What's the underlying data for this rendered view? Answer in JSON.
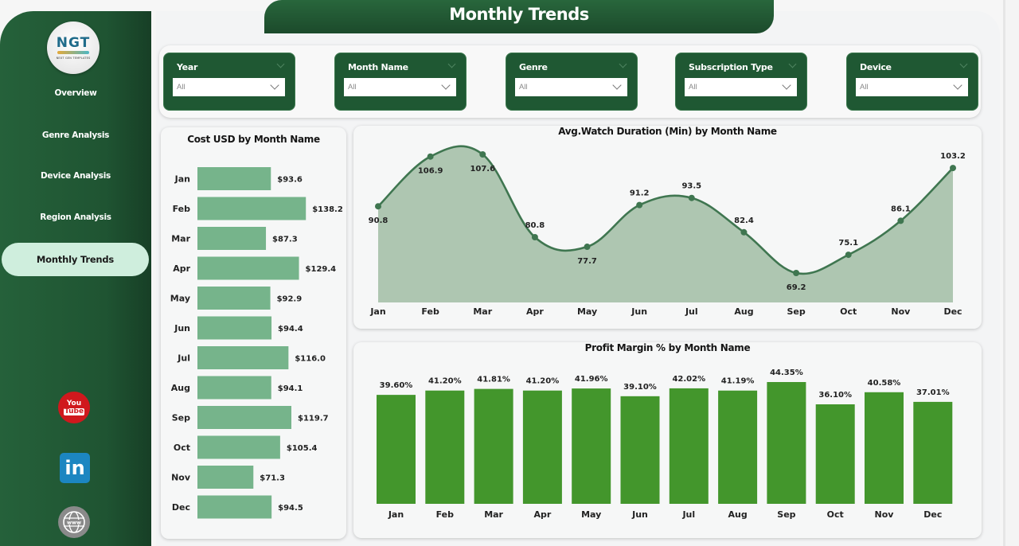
{
  "page_title": "Monthly Trends",
  "logo": {
    "text": "NGT",
    "subtext": "NEXT GEN TEMPLATES"
  },
  "nav": {
    "items": [
      {
        "label": "Overview",
        "active": false
      },
      {
        "label": "Genre Analysis",
        "active": false
      },
      {
        "label": "Device Analysis",
        "active": false
      },
      {
        "label": "Region Analysis",
        "active": false
      },
      {
        "label": "Monthly Trends",
        "active": true
      }
    ]
  },
  "social": {
    "youtube": {
      "icon": "youtube-icon",
      "top": "You",
      "bottom": "Tube"
    },
    "linkedin": {
      "icon": "linkedin-icon",
      "text": "in"
    },
    "website": {
      "icon": "globe-www-icon"
    }
  },
  "filters": [
    {
      "label": "Year",
      "value": "All"
    },
    {
      "label": "Month Name",
      "value": "All"
    },
    {
      "label": "Genre",
      "value": "All"
    },
    {
      "label": "Subscription Type",
      "value": "All"
    },
    {
      "label": "Device",
      "value": "All"
    }
  ],
  "colors": {
    "brand_green": "#1f5833",
    "cost_bar": "#76b48b",
    "area_fill": "#aec6b1",
    "area_line": "#3f7650",
    "profit_bar": "#43962c",
    "active_nav": "#cfeedd"
  },
  "chart_data": [
    {
      "id": "cost",
      "type": "bar",
      "orientation": "horizontal",
      "title": "Cost USD by Month Name",
      "categories": [
        "Jan",
        "Feb",
        "Mar",
        "Apr",
        "May",
        "Jun",
        "Jul",
        "Aug",
        "Sep",
        "Oct",
        "Nov",
        "Dec"
      ],
      "values": [
        93.6,
        138.2,
        87.3,
        129.4,
        92.9,
        94.4,
        116.0,
        94.1,
        119.7,
        105.4,
        71.3,
        94.5
      ],
      "labels": [
        "$93.6",
        "$138.2",
        "$87.3",
        "$129.4",
        "$92.9",
        "$94.4",
        "$116.0",
        "$94.1",
        "$119.7",
        "$105.4",
        "$71.3",
        "$94.5"
      ],
      "xlabel": "",
      "ylabel": "",
      "xlim": [
        0,
        140
      ],
      "grid": false
    },
    {
      "id": "watch",
      "type": "area",
      "title": "Avg.Watch Duration (Min) by Month Name",
      "categories": [
        "Jan",
        "Feb",
        "Mar",
        "Apr",
        "May",
        "Jun",
        "Jul",
        "Aug",
        "Sep",
        "Oct",
        "Nov",
        "Dec"
      ],
      "values": [
        90.8,
        106.9,
        107.6,
        80.8,
        77.7,
        91.2,
        93.5,
        82.4,
        69.2,
        75.1,
        86.1,
        103.2
      ],
      "label_position": [
        "below",
        "below",
        "below",
        "above",
        "below",
        "above",
        "above",
        "above",
        "below",
        "above",
        "above",
        "above"
      ],
      "xlabel": "",
      "ylabel": "",
      "ylim": [
        0,
        115
      ],
      "grid": false
    },
    {
      "id": "profit",
      "type": "bar",
      "orientation": "vertical",
      "title": "Profit Margin % by Month Name",
      "categories": [
        "Jan",
        "Feb",
        "Mar",
        "Apr",
        "May",
        "Jun",
        "Jul",
        "Aug",
        "Sep",
        "Oct",
        "Nov",
        "Dec"
      ],
      "values": [
        39.6,
        41.2,
        41.81,
        41.2,
        41.96,
        39.1,
        42.02,
        41.19,
        44.35,
        36.1,
        40.58,
        37.01
      ],
      "labels": [
        "39.60%",
        "41.20%",
        "41.81%",
        "41.20%",
        "41.96%",
        "39.10%",
        "42.02%",
        "41.19%",
        "44.35%",
        "36.10%",
        "40.58%",
        "37.01%"
      ],
      "xlabel": "",
      "ylabel": "",
      "ylim": [
        0,
        44.35
      ],
      "grid": false
    }
  ]
}
